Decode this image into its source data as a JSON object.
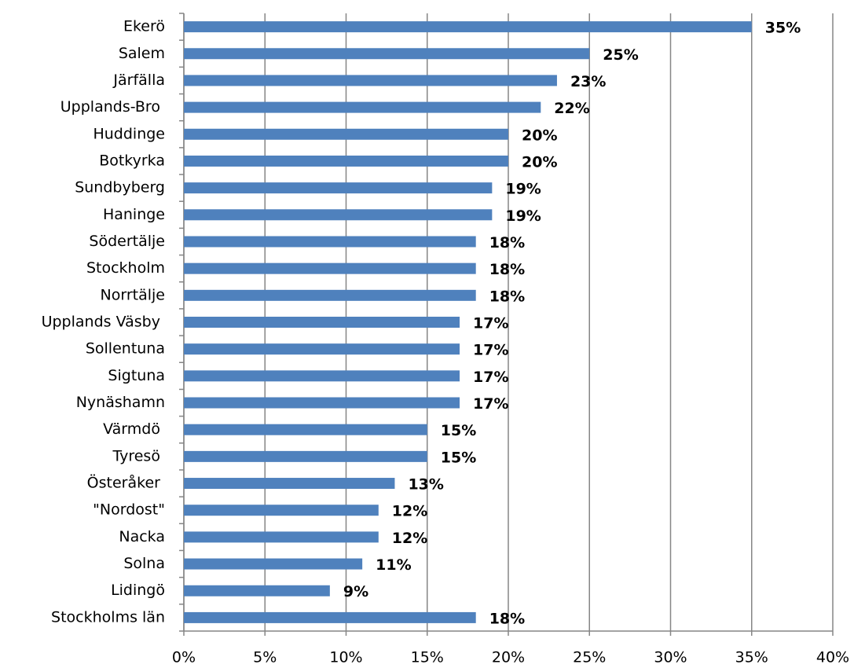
{
  "chart_data": {
    "type": "bar",
    "orientation": "horizontal",
    "categories": [
      "Ekerö",
      "Salem",
      "Järfälla",
      "Upplands-Bro ",
      "Huddinge",
      "Botkyrka",
      "Sundbyberg",
      "Haninge",
      "Södertälje",
      "Stockholm",
      "Norrtälje",
      "Upplands Väsby ",
      "Sollentuna",
      "Sigtuna",
      "Nynäshamn",
      "Värmdö ",
      "Tyresö ",
      "Österåker ",
      "\"Nordost\"",
      "Nacka",
      "Solna",
      "Lidingö",
      "Stockholms län"
    ],
    "values": [
      35,
      25,
      23,
      22,
      20,
      20,
      19,
      19,
      18,
      18,
      18,
      17,
      17,
      17,
      17,
      15,
      15,
      13,
      12,
      12,
      11,
      9,
      18
    ],
    "value_labels": [
      "35%",
      "25%",
      "23%",
      "22%",
      "20%",
      "20%",
      "19%",
      "19%",
      "18%",
      "18%",
      "18%",
      "17%",
      "17%",
      "17%",
      "17%",
      "15%",
      "15%",
      "13%",
      "12%",
      "12%",
      "11%",
      "9%",
      "18%"
    ],
    "color": "#4f81bd",
    "xlim": [
      0,
      40
    ],
    "xticks": [
      {
        "value": 0,
        "label": "0%"
      },
      {
        "value": 5,
        "label": "5%"
      },
      {
        "value": 10,
        "label": "10%"
      },
      {
        "value": 15,
        "label": "15%"
      },
      {
        "value": 20,
        "label": "20%"
      },
      {
        "value": 25,
        "label": "25%"
      },
      {
        "value": 30,
        "label": "30%"
      },
      {
        "value": 35,
        "label": "35%"
      },
      {
        "value": 40,
        "label": "40%"
      }
    ],
    "grid": true
  }
}
